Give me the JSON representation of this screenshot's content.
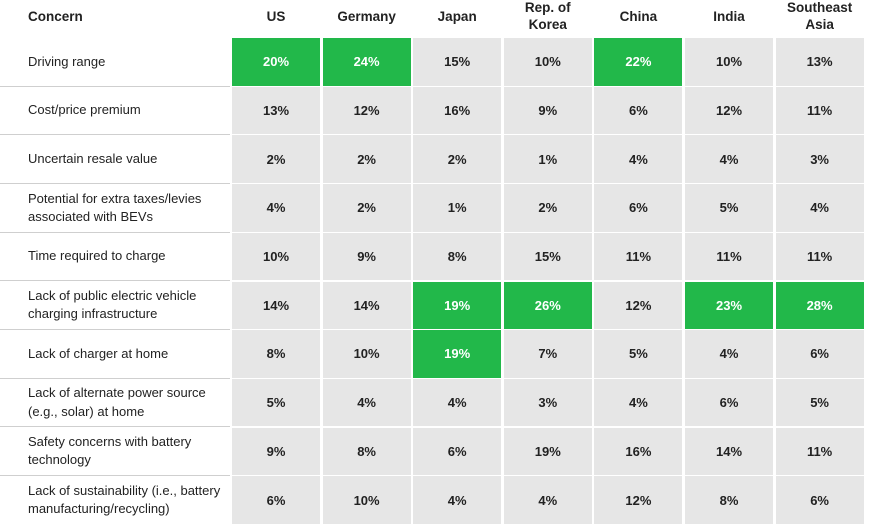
{
  "header": {
    "concern": "Concern",
    "columns": [
      "US",
      "Germany",
      "Japan",
      "Rep. of Korea",
      "China",
      "India",
      "Southeast Asia"
    ]
  },
  "rows": [
    {
      "concern": "Driving range",
      "values": [
        "20%",
        "24%",
        "15%",
        "10%",
        "22%",
        "10%",
        "13%"
      ]
    },
    {
      "concern": "Cost/price premium",
      "values": [
        "13%",
        "12%",
        "16%",
        "9%",
        "6%",
        "12%",
        "11%"
      ]
    },
    {
      "concern": "Uncertain resale value",
      "values": [
        "2%",
        "2%",
        "2%",
        "1%",
        "4%",
        "4%",
        "3%"
      ]
    },
    {
      "concern": "Potential for extra taxes/levies associated with BEVs",
      "values": [
        "4%",
        "2%",
        "1%",
        "2%",
        "6%",
        "5%",
        "4%"
      ]
    },
    {
      "concern": "Time required to charge",
      "values": [
        "10%",
        "9%",
        "8%",
        "15%",
        "11%",
        "11%",
        "11%"
      ]
    },
    {
      "concern": "Lack of public electric vehicle charging infrastructure",
      "values": [
        "14%",
        "14%",
        "19%",
        "26%",
        "12%",
        "23%",
        "28%"
      ]
    },
    {
      "concern": "Lack of charger at home",
      "values": [
        "8%",
        "10%",
        "19%",
        "7%",
        "5%",
        "4%",
        "6%"
      ]
    },
    {
      "concern": "Lack of alternate power source (e.g., solar) at home",
      "values": [
        "5%",
        "4%",
        "4%",
        "3%",
        "4%",
        "6%",
        "5%"
      ]
    },
    {
      "concern": "Safety concerns with battery technology",
      "values": [
        "9%",
        "8%",
        "6%",
        "19%",
        "16%",
        "14%",
        "11%"
      ]
    },
    {
      "concern": "Lack of sustainability (i.e., battery manufacturing/recycling)",
      "values": [
        "6%",
        "10%",
        "4%",
        "4%",
        "12%",
        "8%",
        "6%"
      ]
    }
  ],
  "cell_color": "#e6e6e6",
  "highlight_color": "#22b84a",
  "highlighted": [
    [
      0,
      0
    ],
    [
      0,
      1
    ],
    [
      0,
      4
    ],
    [
      5,
      2
    ],
    [
      5,
      3
    ],
    [
      5,
      5
    ],
    [
      5,
      6
    ],
    [
      6,
      2
    ]
  ]
}
